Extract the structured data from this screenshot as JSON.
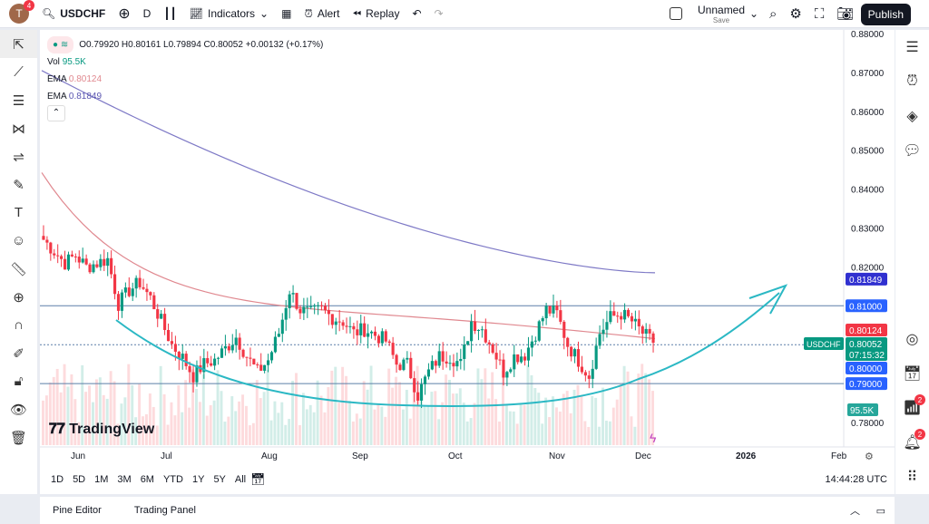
{
  "header": {
    "avatar": "T",
    "avatar_badge": "4",
    "symbol": "USDCHF",
    "interval": "D",
    "indicators": "Indicators",
    "alert": "Alert",
    "replay": "Replay",
    "layout_name": "Unnamed",
    "layout_sub": "Save",
    "publish": "Publish"
  },
  "legend": {
    "ohlc": "O0.79920 H0.80161 L0.79894 C0.80052 +0.00132 (+0.17%)",
    "vol_label": "Vol",
    "vol_value": "95.5K",
    "ema1_label": "EMA",
    "ema1_value": "0.80124",
    "ema2_label": "EMA",
    "ema2_value": "0.81849"
  },
  "watermark": "TradingView",
  "price_axis": [
    "0.88000",
    "0.87000",
    "0.86000",
    "0.85000",
    "0.84000",
    "0.83000",
    "0.82000",
    "0.78000"
  ],
  "price_labels": {
    "ema200": "0.81849",
    "line_081": "0.81000",
    "ema50": "0.80124",
    "last": "0.80052",
    "countdown": "07:15:32",
    "line_080": "0.80000",
    "line_079": "0.79000",
    "vol": "95.5K",
    "symbol_tag": "USDCHF"
  },
  "time_axis": [
    "Jun",
    "Jul",
    "Aug",
    "Sep",
    "Oct",
    "Nov",
    "Dec",
    "2026",
    "Feb"
  ],
  "ranges": [
    "1D",
    "5D",
    "1M",
    "3M",
    "6M",
    "YTD",
    "1Y",
    "5Y",
    "All"
  ],
  "clock": "14:44:28 UTC",
  "bottom_tabs": [
    "Pine Editor",
    "Trading Panel"
  ],
  "right_badges": [
    "2",
    "2"
  ],
  "colors": {
    "up": "#089981",
    "down": "#f23645",
    "ema50": "#e0888f",
    "ema200": "#7e79c6",
    "curve": "#2bb8c4",
    "hline": "#5b7fa8"
  },
  "chart_data": {
    "type": "candlestick",
    "symbol": "USDCHF",
    "interval": "D",
    "closes": [
      0.827,
      0.824,
      0.821,
      0.823,
      0.82,
      0.821,
      0.822,
      0.8105,
      0.814,
      0.816,
      0.812,
      0.806,
      0.8,
      0.7966,
      0.792,
      0.795,
      0.796,
      0.799,
      0.802,
      0.797,
      0.793,
      0.796,
      0.803,
      0.814,
      0.809,
      0.808,
      0.809,
      0.807,
      0.806,
      0.803,
      0.804,
      0.8025,
      0.801,
      0.795,
      0.795,
      0.787,
      0.793,
      0.797,
      0.797,
      0.795,
      0.806,
      0.804,
      0.799,
      0.793,
      0.797,
      0.7975,
      0.803,
      0.809,
      0.808,
      0.8,
      0.796,
      0.792,
      0.803,
      0.807,
      0.808,
      0.806,
      0.803,
      0.8005
    ],
    "ema50_end": 0.80124,
    "ema200_end": 0.81849,
    "horizontal_lines": [
      0.81,
      0.8,
      0.79
    ],
    "ylim": [
      0.78,
      0.88
    ]
  }
}
